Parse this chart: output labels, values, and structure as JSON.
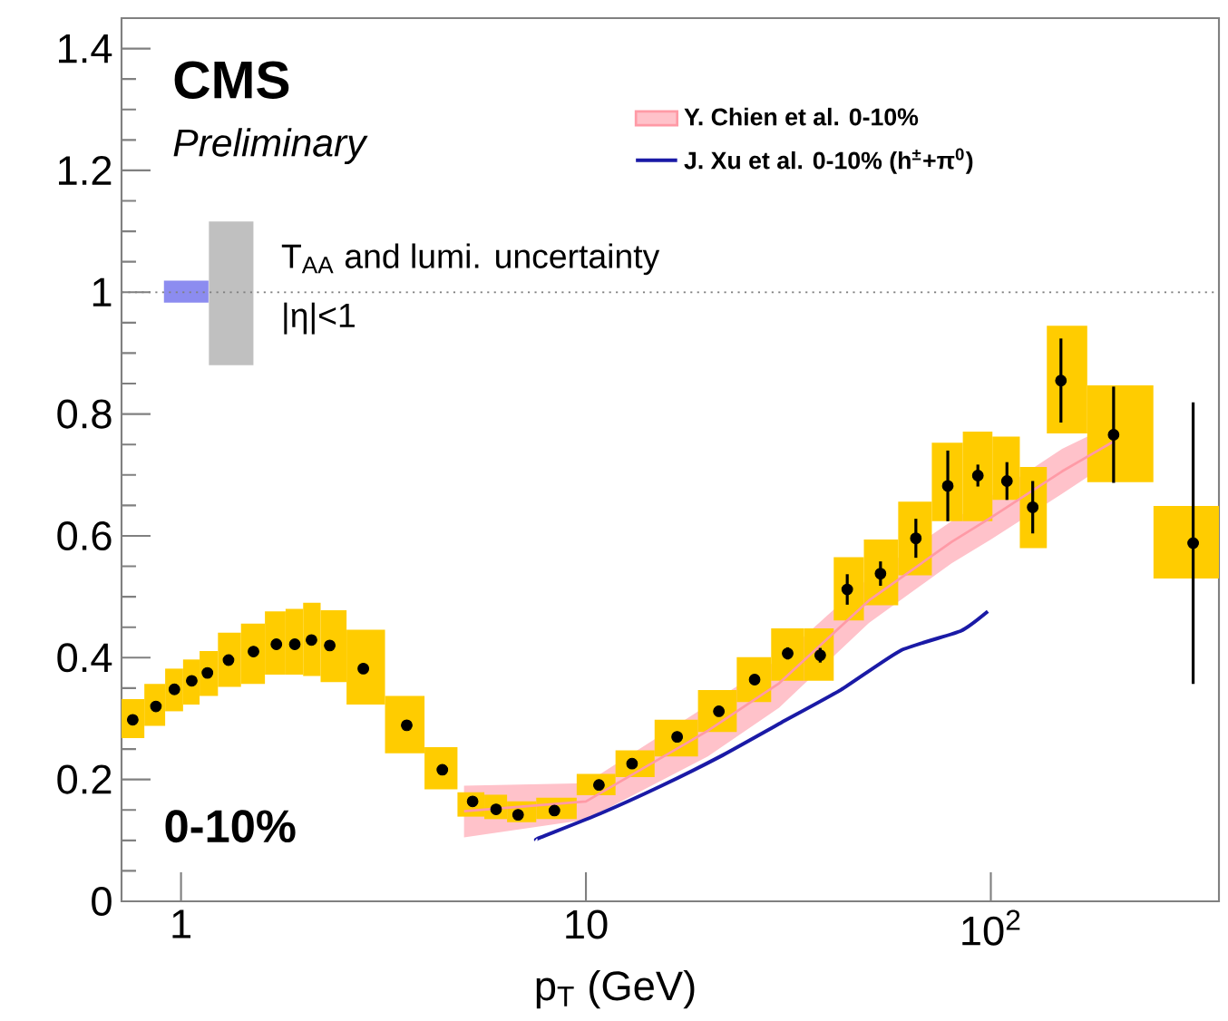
{
  "chart_data": {
    "type": "scatter",
    "xlabel": "p$_{T}$ (GeV)",
    "log": "x",
    "xlim": [
      0.713,
      366
    ],
    "ylim": [
      0,
      1.45
    ],
    "xticks": [
      1,
      10,
      {
        "value": 100,
        "label": "10$^{2}$"
      }
    ],
    "yticks": [
      0,
      0.2,
      0.4,
      0.6,
      0.8,
      1,
      1.2,
      1.4
    ],
    "grid": false,
    "legend": "top right",
    "marker": "circle",
    "annotations": [
      "CMS",
      "Preliminary",
      "T$_{AA}$ and lumi. uncertainty",
      "|η|<1",
      "0-10%"
    ],
    "ref_lines": [
      {
        "axis": "y",
        "value": 1,
        "color": "#808080",
        "line_style": "dotted"
      }
    ],
    "series": [
      {
        "type": "bar",
        "color": "#ffcc00",
        "x": [
          0.76,
          0.867,
          0.963,
          1.063,
          1.162,
          1.31,
          1.51,
          1.72,
          1.91,
          2.1,
          2.33,
          2.82,
          3.61,
          4.42,
          5.25,
          6.0,
          6.8,
          8.36,
          10.77,
          13.0,
          16.8,
          21.3,
          26.1,
          31.5,
          37.9,
          44.2,
          53.4,
          65.3,
          78.3,
          92.9,
          109.6,
          126.9,
          149,
          201,
          316
        ],
        "base": [
          0.268,
          0.288,
          0.312,
          0.323,
          0.337,
          0.352,
          0.357,
          0.372,
          0.372,
          0.37,
          0.36,
          0.323,
          0.243,
          0.184,
          0.139,
          0.135,
          0.13,
          0.135,
          0.174,
          0.204,
          0.238,
          0.278,
          0.327,
          0.362,
          0.362,
          0.461,
          0.486,
          0.535,
          0.624,
          0.624,
          0.659,
          0.58,
          0.768,
          0.688,
          0.53
        ],
        "values": [
          0.064,
          0.069,
          0.07,
          0.074,
          0.074,
          0.089,
          0.099,
          0.104,
          0.108,
          0.12,
          0.118,
          0.123,
          0.094,
          0.069,
          0.04,
          0.04,
          0.034,
          0.035,
          0.035,
          0.044,
          0.06,
          0.069,
          0.074,
          0.086,
          0.086,
          0.104,
          0.108,
          0.121,
          0.129,
          0.147,
          0.104,
          0.133,
          0.177,
          0.159,
          0.119
        ]
      },
      {
        "color": "#000000",
        "x": [
          0.76,
          0.867,
          0.963,
          1.063,
          1.162,
          1.31,
          1.51,
          1.72,
          1.91,
          2.1,
          2.33,
          2.82,
          3.61,
          4.42,
          5.25,
          6.0,
          6.8,
          8.36,
          10.77,
          13.0,
          16.8,
          21.3,
          26.1,
          31.5,
          37.9,
          44.2,
          53.4,
          65.3,
          78.3,
          92.9,
          109.6,
          126.9,
          149,
          201,
          316
        ],
        "values": [
          0.298,
          0.32,
          0.348,
          0.362,
          0.375,
          0.396,
          0.41,
          0.422,
          0.422,
          0.429,
          0.42,
          0.382,
          0.289,
          0.216,
          0.164,
          0.151,
          0.142,
          0.149,
          0.191,
          0.226,
          0.27,
          0.312,
          0.364,
          0.407,
          0.404,
          0.512,
          0.538,
          0.596,
          0.682,
          0.699,
          0.69,
          0.647,
          0.855,
          0.766,
          0.588
        ],
        "errors": [
          null,
          null,
          null,
          null,
          null,
          null,
          null,
          null,
          null,
          null,
          null,
          null,
          null,
          null,
          null,
          null,
          null,
          null,
          null,
          null,
          null,
          null,
          null,
          0.01,
          0.012,
          0.025,
          0.02,
          0.032,
          0.058,
          0.018,
          0.031,
          0.043,
          0.069,
          0.079,
          0.231
        ]
      },
      {
        "type": "line",
        "marker": "none",
        "name": "Y. Chien et al. 0-10%",
        "color": "#ff9aa6",
        "x": [
          5,
          10,
          20,
          30,
          50,
          80,
          100,
          150,
          200
        ],
        "values": [
          0.148,
          0.164,
          0.28,
          0.358,
          0.494,
          0.59,
          0.63,
          0.706,
          0.754
        ],
        "lower": [
          0.105,
          0.134,
          0.238,
          0.318,
          0.457,
          0.555,
          0.594,
          0.669,
          0.724
        ],
        "upper": [
          0.19,
          0.194,
          0.322,
          0.398,
          0.531,
          0.624,
          0.665,
          0.743,
          0.783
        ]
      },
      {
        "type": "line",
        "marker": "none",
        "name": "J. Xu et al. 0-10% (h$^{±}$+π$^{0}$)",
        "color": "#1a1aa6",
        "x": [
          7.52,
          7.74,
          10.85,
          15.3,
          21.5,
          30.3,
          42.6,
          60,
          84.4,
          98.3
        ],
        "values": [
          0.101,
          0.105,
          0.144,
          0.189,
          0.238,
          0.293,
          0.347,
          0.412,
          0.444,
          0.476
        ]
      },
      {
        "type": "bar",
        "color": "#8c8cf0",
        "x": [
          1.03
        ],
        "base": [
          0.983
        ],
        "values": [
          0.036
        ]
      },
      {
        "type": "bar",
        "color": "#c0c0c0",
        "x": [
          1.33
        ],
        "base": [
          0.88
        ],
        "values": [
          0.236
        ]
      }
    ]
  }
}
